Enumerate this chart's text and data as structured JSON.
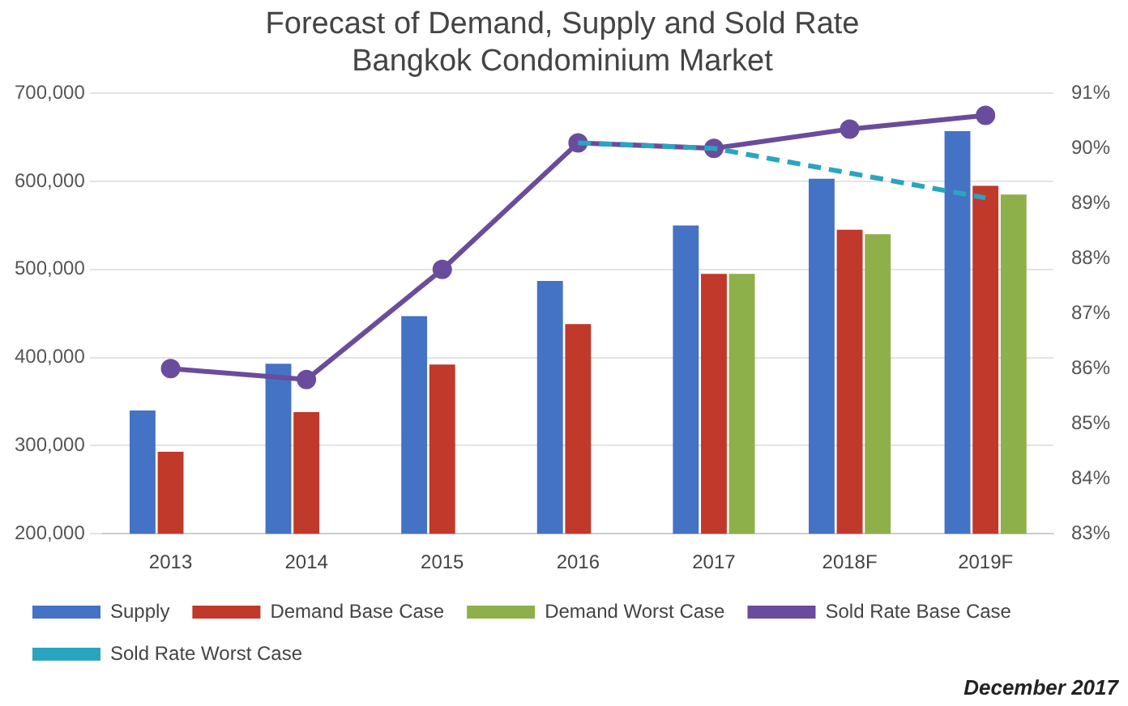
{
  "chart_data": {
    "type": "bar",
    "title": "Forecast of Demand, Supply and Sold Rate\nBangkok Condominium Market",
    "categories": [
      "2013",
      "2014",
      "2015",
      "2016",
      "2017",
      "2018F",
      "2019F"
    ],
    "series": [
      {
        "name": "Supply",
        "color": "#4472c4",
        "values": [
          340000,
          393000,
          447000,
          487000,
          550000,
          603000,
          657000
        ]
      },
      {
        "name": "Demand Base Case",
        "color": "#c0392b",
        "values": [
          293000,
          338000,
          392000,
          438000,
          495000,
          545000,
          595000
        ]
      },
      {
        "name": "Demand Worst Case",
        "color": "#8db04a",
        "values": [
          null,
          null,
          null,
          null,
          495000,
          540000,
          585000
        ]
      },
      {
        "name": "Sold Rate Base Case",
        "type": "line",
        "axis": "y2",
        "color": "#6a4c9c",
        "marker": "circle",
        "line_style": "solid",
        "values": [
          86.0,
          85.8,
          87.8,
          90.1,
          90.0,
          90.35,
          90.6
        ]
      },
      {
        "name": "Sold Rate Worst Case",
        "type": "line",
        "axis": "y2",
        "color": "#2aa5c0",
        "marker": "none",
        "line_style": "dashed",
        "values": [
          null,
          null,
          null,
          90.1,
          90.0,
          89.55,
          89.1
        ]
      }
    ],
    "ylim": [
      200000,
      700000
    ],
    "yticks": [
      {
        "value": 200000,
        "label": "200,000"
      },
      {
        "value": 300000,
        "label": "300,000"
      },
      {
        "value": 400000,
        "label": "400,000"
      },
      {
        "value": 500000,
        "label": "500,000"
      },
      {
        "value": 600000,
        "label": "600,000"
      },
      {
        "value": 700000,
        "label": "700,000"
      }
    ],
    "y2lim": [
      83,
      91
    ],
    "y2ticks": [
      {
        "value": 83,
        "label": "83%"
      },
      {
        "value": 84,
        "label": "84%"
      },
      {
        "value": 85,
        "label": "85%"
      },
      {
        "value": 86,
        "label": "86%"
      },
      {
        "value": 87,
        "label": "87%"
      },
      {
        "value": 88,
        "label": "88%"
      },
      {
        "value": 89,
        "label": "89%"
      },
      {
        "value": 90,
        "label": "90%"
      },
      {
        "value": 91,
        "label": "91%"
      }
    ],
    "grid": "y",
    "legend": "bottom",
    "annotations": [
      "December 2017"
    ]
  }
}
